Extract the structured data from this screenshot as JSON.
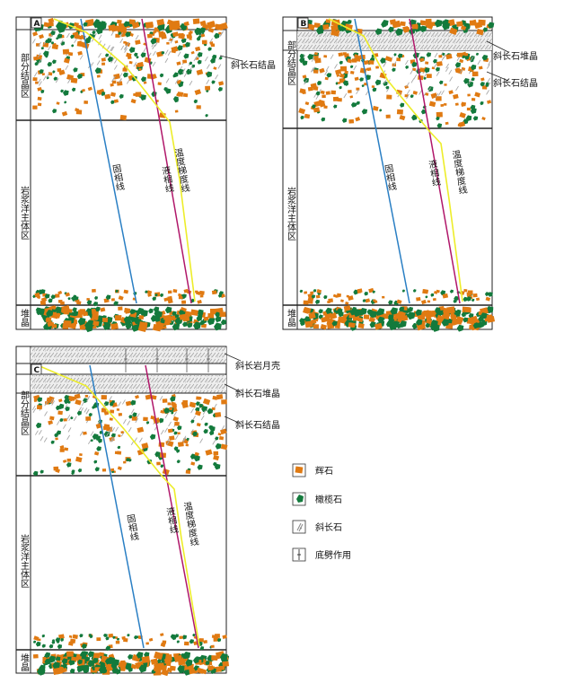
{
  "panels": [
    {
      "id": "A",
      "letter": "A",
      "zones": {
        "partial": "部分结晶区",
        "main": "岩浆洋主体区",
        "cumulate": "堆晶"
      },
      "lines": {
        "solidus": "固相线",
        "liquidus": "液相线",
        "temp": "温度梯度线"
      },
      "callouts": [
        "斜长石结晶"
      ]
    },
    {
      "id": "B",
      "letter": "B",
      "zones": {
        "partial": "部分结晶区",
        "main": "岩浆洋主体区",
        "cumulate": "堆晶"
      },
      "lines": {
        "solidus": "固相线",
        "liquidus": "液相线",
        "temp": "温度梯度线"
      },
      "callouts": [
        "斜长石堆晶",
        "斜长石结晶"
      ]
    },
    {
      "id": "C",
      "letter": "C",
      "zones": {
        "partial": "部分结晶区",
        "main": "岩浆洋主体区",
        "cumulate": "堆晶"
      },
      "lines": {
        "solidus": "固相线",
        "liquidus": "液相线",
        "temp": "温度梯度线"
      },
      "callouts": [
        "斜长岩月壳",
        "斜长石堆晶",
        "斜长石结晶"
      ]
    }
  ],
  "legend": [
    {
      "key": "pyroxene",
      "label": "辉石"
    },
    {
      "key": "olivine",
      "label": "橄榄石"
    },
    {
      "key": "plagioclase",
      "label": "斜长石"
    },
    {
      "key": "erosion",
      "label": "底劈作用"
    }
  ],
  "colors": {
    "pyroxene": "#e07a12",
    "olivine": "#137a3c",
    "solidus": "#2a7fc4",
    "liquidus": "#b0176a",
    "temp": "#eded2a",
    "frame": "#222222"
  }
}
